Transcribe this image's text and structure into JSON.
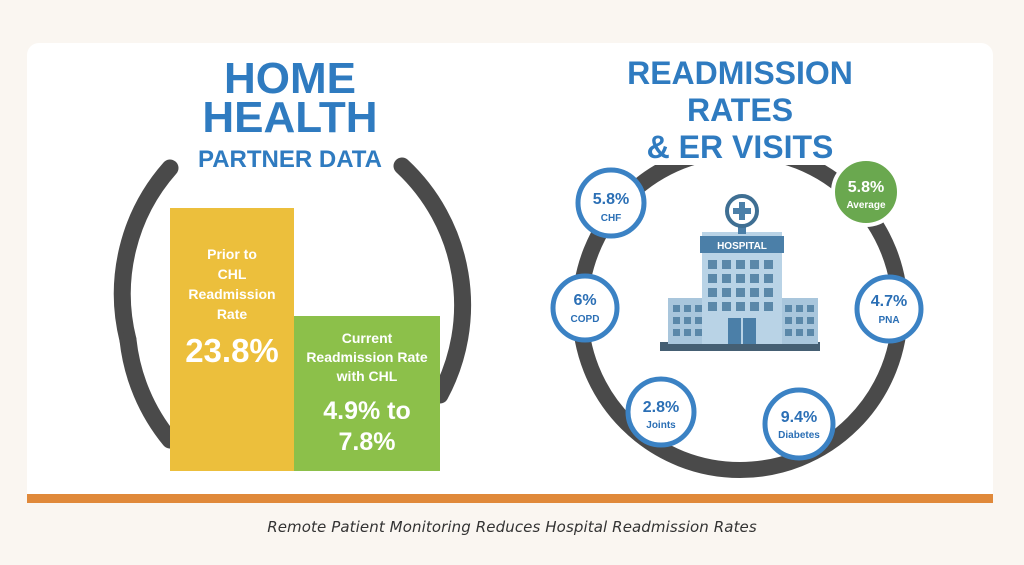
{
  "left": {
    "title_line1": "HOME",
    "title_line2": "HEALTH",
    "subtitle": "PARTNER DATA",
    "prior": {
      "line1": "Prior to",
      "line2": "CHL",
      "line3": "Readmission",
      "line4": "Rate",
      "value": "23.8%"
    },
    "current": {
      "line1": "Current",
      "line2": "Readmission Rate",
      "line3": "with CHL",
      "value_line1": "4.9% to",
      "value_line2": "7.8%"
    }
  },
  "right": {
    "title_line1": "READMISSION",
    "title_line2": "RATES",
    "title_line3": "& ER VISITS",
    "hospital_sign": "HOSPITAL",
    "circles": [
      {
        "value": "5.8%",
        "label": "CHF"
      },
      {
        "value": "5.8%",
        "label": "Average"
      },
      {
        "value": "6%",
        "label": "COPD"
      },
      {
        "value": "4.7%",
        "label": "PNA"
      },
      {
        "value": "2.8%",
        "label": "Joints"
      },
      {
        "value": "9.4%",
        "label": "Diabetes"
      }
    ]
  },
  "caption": "Remote Patient Monitoring Reduces Hospital Readmission Rates",
  "colors": {
    "title_blue": "#2f7bc0",
    "bar_yellow": "#ecbf3c",
    "bar_green": "#8cc04a",
    "ring_gray": "#4a4a4a",
    "circle_blue": "#3b82c4",
    "circle_green": "#6aa84f",
    "accent_orange": "#e0893a"
  }
}
